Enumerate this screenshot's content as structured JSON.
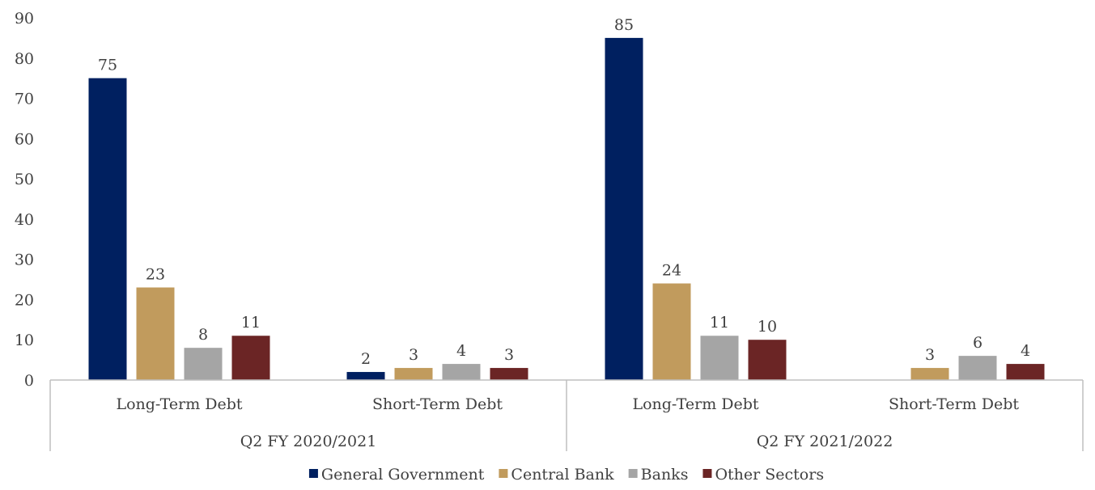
{
  "chart_data": {
    "type": "bar",
    "title": "",
    "xlabel": "",
    "ylabel": "",
    "ylim": [
      0,
      90
    ],
    "yticks": [
      0,
      10,
      20,
      30,
      40,
      50,
      60,
      70,
      80,
      90
    ],
    "grid": false,
    "legend_position": "bottom",
    "groups": [
      {
        "label": "Q2 FY 2020/2021",
        "categories": [
          "Long-Term Debt",
          "Short-Term Debt"
        ]
      },
      {
        "label": "Q2 FY 2021/2022",
        "categories": [
          "Long-Term Debt",
          "Short-Term Debt"
        ]
      }
    ],
    "categories": [
      "Long-Term Debt",
      "Short-Term Debt",
      "Long-Term Debt",
      "Short-Term Debt"
    ],
    "series": [
      {
        "name": "General Government",
        "color": "#002060",
        "values": [
          75,
          2,
          85,
          0
        ],
        "labels": [
          "75",
          "2",
          "85",
          ""
        ]
      },
      {
        "name": "Central Bank",
        "color": "#C19B5D",
        "values": [
          23,
          3,
          24,
          3
        ],
        "labels": [
          "23",
          "3",
          "24",
          "3"
        ]
      },
      {
        "name": "Banks",
        "color": "#A5A5A5",
        "values": [
          8,
          4,
          11,
          6
        ],
        "labels": [
          "8",
          "4",
          "11",
          "6"
        ]
      },
      {
        "name": "Other Sectors",
        "color": "#6B2525",
        "values": [
          11,
          3,
          10,
          4
        ],
        "labels": [
          "11",
          "3",
          "10",
          "4"
        ]
      }
    ]
  }
}
